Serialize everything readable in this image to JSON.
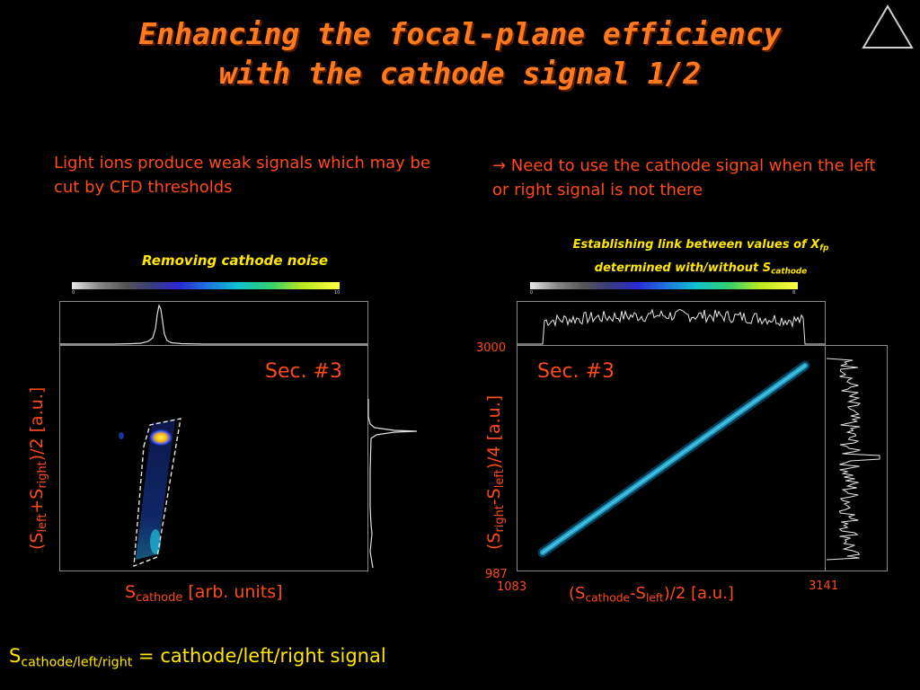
{
  "slide": {
    "title_line1": "Enhancing the focal-plane efficiency",
    "title_line2": "with the cathode signal 1/2",
    "left_text": "Light ions produce weak signals which may be cut by CFD thresholds",
    "right_text": "→ Need to use the cathode signal when the left or right signal is not there",
    "footer_text": " = cathode/left/right signal",
    "footer_sym": "S",
    "footer_sub": "cathode/left/right",
    "triangle_icon": "triangle-nav-icon"
  },
  "left_panel": {
    "caption": "Removing cathode noise",
    "sector_label": "Sec. #3",
    "colorbar_min": "0",
    "colorbar_max": "10",
    "ylabel_pre": "(S",
    "ylabel_sub1": "left",
    "ylabel_mid": "+S",
    "ylabel_sub2": "right",
    "ylabel_post": ")/2 [a.u.]",
    "xlabel_sym": "S",
    "xlabel_sub": "cathode",
    "xlabel_post": " [arb. units]"
  },
  "right_panel": {
    "caption_line1": "Establishing link between values of X",
    "caption_sub1": "fp",
    "caption_line2": "determined with/without S",
    "caption_sub2": "cathode",
    "sector_label": "Sec. #3",
    "colorbar_min": "0",
    "colorbar_max": "8",
    "y_top": "3000",
    "y_bottom": "987",
    "x_left": "1083",
    "x_right": "3141",
    "ylabel_pre": "(S",
    "ylabel_sub1": "right",
    "ylabel_mid": "-S",
    "ylabel_sub2": "left",
    "ylabel_post": ")/4 [a.u.]",
    "xlabel_pre": "(S",
    "xlabel_sub1": "cathode",
    "xlabel_mid": "-S",
    "xlabel_sub2": "left",
    "xlabel_post": ")/2 [a.u.]"
  },
  "colors": {
    "title": "#ff7a1c",
    "text_orange": "#ff4a1a",
    "caption_yellow": "#ffe600",
    "background": "#000000"
  }
}
